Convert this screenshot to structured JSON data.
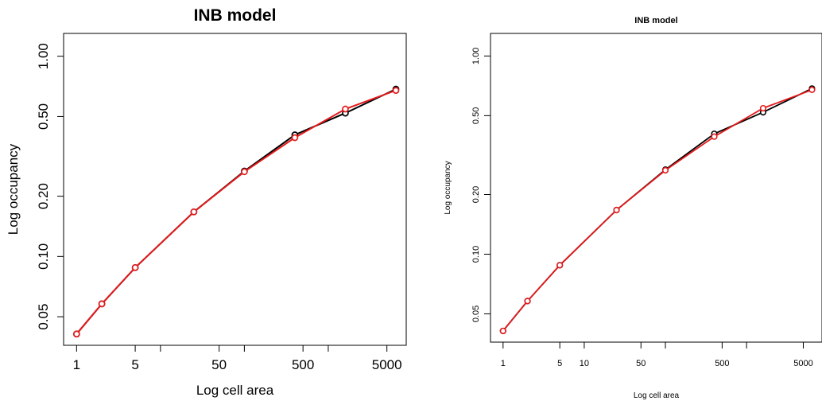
{
  "chart_data": [
    {
      "type": "line",
      "title": "INB model",
      "xlabel": "Log cell area",
      "ylabel": "Log occupancy",
      "x_scale": "log",
      "y_scale": "log",
      "xlim": [
        0.7,
        8500
      ],
      "ylim": [
        0.036,
        1.3
      ],
      "x_ticks": [
        1,
        5,
        10,
        50,
        100,
        500,
        1000,
        5000
      ],
      "x_tick_labels": [
        "1",
        "5",
        "",
        "50",
        "",
        "500",
        "",
        "5000"
      ],
      "y_ticks": [
        0.05,
        0.1,
        0.2,
        0.5,
        1.0
      ],
      "y_tick_labels": [
        "0.05",
        "0.10",
        "0.20",
        "0.50",
        "1.00"
      ],
      "grid": false,
      "series": [
        {
          "color": "#000000",
          "x": [
            1,
            2,
            5,
            25,
            100,
            400,
            1600,
            6400
          ],
          "y": [
            0.041,
            0.058,
            0.088,
            0.167,
            0.267,
            0.405,
            0.52,
            0.685
          ]
        },
        {
          "color": "#e41a1c",
          "x": [
            1,
            2,
            5,
            25,
            100,
            400,
            1600,
            6400
          ],
          "y": [
            0.041,
            0.058,
            0.088,
            0.167,
            0.265,
            0.392,
            0.545,
            0.675
          ]
        }
      ]
    },
    {
      "type": "line",
      "title": "INB model",
      "xlabel": "Log cell area",
      "ylabel": "Log occupancy",
      "x_scale": "log",
      "y_scale": "log",
      "xlim": [
        0.7,
        8500
      ],
      "ylim": [
        0.036,
        1.3
      ],
      "x_ticks": [
        1,
        5,
        10,
        50,
        100,
        500,
        1000,
        5000
      ],
      "x_tick_labels": [
        "1",
        "5",
        "10",
        "50",
        "",
        "500",
        "",
        "5000"
      ],
      "y_ticks": [
        0.05,
        0.1,
        0.2,
        0.5,
        1.0
      ],
      "y_tick_labels": [
        "0.05",
        "0.10",
        "0.20",
        "0.50",
        "1.00"
      ],
      "grid": false,
      "series": [
        {
          "color": "#000000",
          "x": [
            1,
            2,
            5,
            25,
            100,
            400,
            1600,
            6400
          ],
          "y": [
            0.041,
            0.058,
            0.088,
            0.167,
            0.267,
            0.405,
            0.52,
            0.685
          ]
        },
        {
          "color": "#e41a1c",
          "x": [
            1,
            2,
            5,
            25,
            100,
            400,
            1600,
            6400
          ],
          "y": [
            0.041,
            0.058,
            0.088,
            0.167,
            0.265,
            0.392,
            0.545,
            0.675
          ]
        }
      ]
    }
  ]
}
